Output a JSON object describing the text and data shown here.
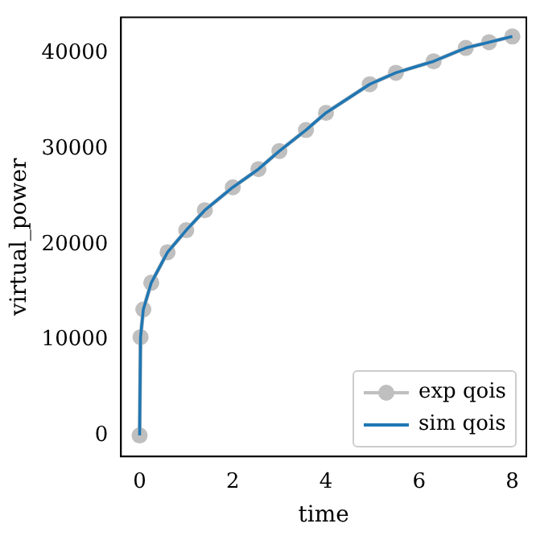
{
  "chart_data": {
    "type": "line",
    "xlabel": "time",
    "ylabel": "virtual_power",
    "x": [
      0,
      0.02,
      0.08,
      0.25,
      0.6,
      1.0,
      1.4,
      2.0,
      2.55,
      3.0,
      3.57,
      4.0,
      4.94,
      5.5,
      6.31,
      7.0,
      7.5,
      8.0
    ],
    "series": [
      {
        "name": "exp qois",
        "color": "#bfbfbf",
        "marker": "circle",
        "values": [
          0,
          10300,
          13200,
          16000,
          19200,
          21500,
          23600,
          26000,
          27900,
          29800,
          32000,
          33800,
          36800,
          38000,
          39200,
          40600,
          41200,
          41800
        ]
      },
      {
        "name": "sim qois",
        "color": "#1f77b4",
        "marker": "none",
        "values": [
          0,
          10300,
          13200,
          16000,
          19200,
          21500,
          23600,
          26000,
          27900,
          29800,
          32000,
          33800,
          36800,
          38000,
          39200,
          40600,
          41200,
          41800
        ]
      }
    ],
    "xlim": [
      -0.4,
      8.3
    ],
    "xticks": [
      0,
      2,
      4,
      6,
      8
    ],
    "ylim": [
      -2200,
      43800
    ],
    "yticks": [
      0,
      10000,
      20000,
      30000,
      40000
    ],
    "grid": false,
    "legend": "bottom right"
  }
}
